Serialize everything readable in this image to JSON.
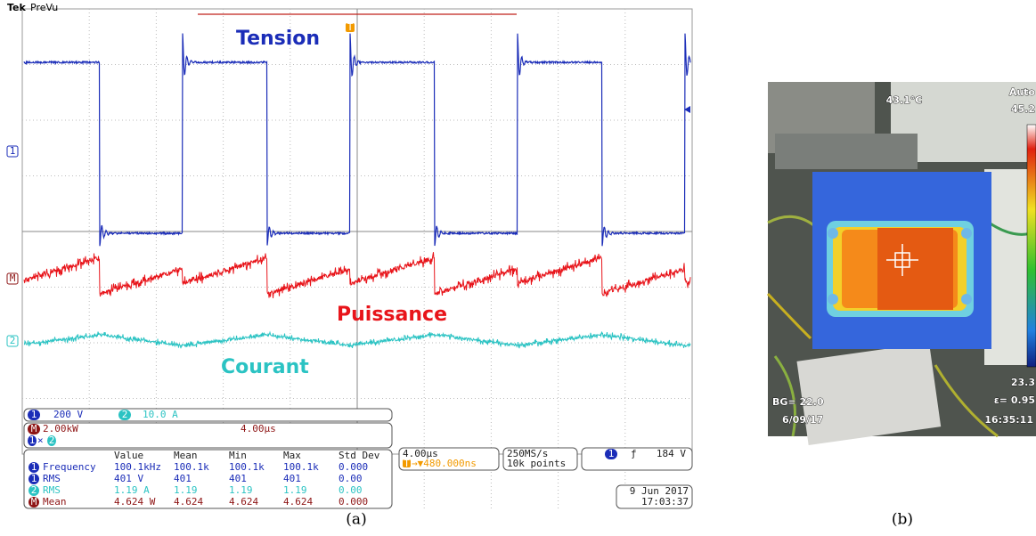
{
  "scope": {
    "brand": "Tek",
    "mode": "PreVu",
    "trigger_marker": "T",
    "channel_markers": [
      "1",
      "M",
      "2"
    ],
    "waveform_labels": [
      "Tension",
      "Puissance",
      "Courant"
    ],
    "readout": {
      "ch1_icon": "1",
      "ch1_scale": "200 V",
      "ch2_icon": "2",
      "ch2_scale": "10.0 A",
      "math_icon": "M",
      "math_scale": "2.00kW",
      "math_time": "4.00µs",
      "math_expr": [
        "1",
        "×",
        "2"
      ]
    },
    "measurements": {
      "columns": [
        "Value",
        "Mean",
        "Min",
        "Max",
        "Std Dev"
      ],
      "rows": [
        {
          "icon": "1",
          "name": "Frequency",
          "cells": [
            "100.1kHz",
            "100.1k",
            "100.1k",
            "100.1k",
            "0.000"
          ]
        },
        {
          "icon": "1",
          "name": "RMS",
          "cells": [
            "401 V",
            "401",
            "401",
            "401",
            "0.00"
          ]
        },
        {
          "icon": "2",
          "name": "RMS",
          "cells": [
            "1.19 A",
            "1.19",
            "1.19",
            "1.19",
            "0.00"
          ]
        },
        {
          "icon": "M",
          "name": "Mean",
          "cells": [
            "4.624 W",
            "4.624",
            "4.624",
            "4.624",
            "0.000"
          ]
        }
      ]
    },
    "timebase": "4.00µs",
    "trigger_icon": "T",
    "trigger_pos": "→▼480.000ns",
    "sample_rate": "250MS/s",
    "record_length": "10k points",
    "trigger": {
      "icon": "1",
      "slope": "ƒ",
      "level": "184 V"
    },
    "date": "9 Jun 2017",
    "time": "17:03:37"
  },
  "thermal": {
    "spot_temp": "43.1°C",
    "mode": "Auto",
    "scale_max": "45.2",
    "scale_min": "23.3",
    "background": "BG= 22.0",
    "emissivity": "ε= 0.95",
    "date": "6/09/17",
    "time": "16:35:11"
  },
  "captions": [
    "(a)",
    "(b)"
  ]
}
